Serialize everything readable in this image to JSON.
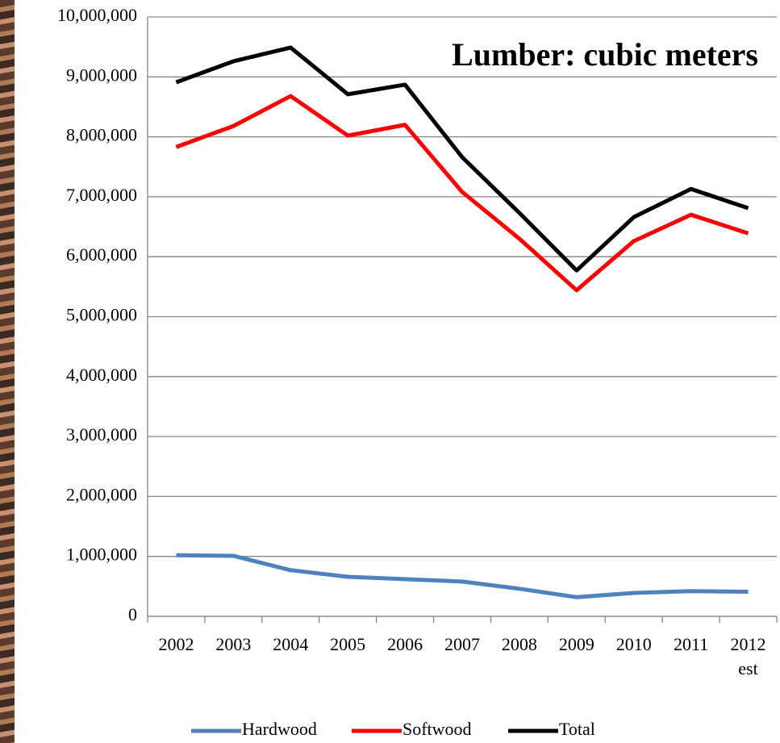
{
  "chart_data": {
    "type": "line",
    "title": "Lumber: cubic meters",
    "categories": [
      "2002",
      "2003",
      "2004",
      "2005",
      "2006",
      "2007",
      "2008",
      "2009",
      "2010",
      "2011",
      "2012 est"
    ],
    "series": [
      {
        "name": "Hardwood",
        "color": "#4f81bd",
        "values": [
          1020000,
          1010000,
          770000,
          660000,
          620000,
          580000,
          460000,
          320000,
          390000,
          420000,
          410000
        ]
      },
      {
        "name": "Softwood",
        "color": "#ff0000",
        "values": [
          7830000,
          8180000,
          8680000,
          8020000,
          8200000,
          7080000,
          6300000,
          5440000,
          6260000,
          6700000,
          6390000
        ]
      },
      {
        "name": "Total",
        "color": "#000000",
        "values": [
          8910000,
          9260000,
          9490000,
          8710000,
          8870000,
          7660000,
          6730000,
          5770000,
          6660000,
          7130000,
          6810000
        ]
      }
    ],
    "ylim": [
      0,
      10000000
    ],
    "yticks": [
      0,
      {
        "value": 1000000,
        "label": "1,000,000"
      },
      {
        "value": 2000000,
        "label": "2,000,000"
      },
      {
        "value": 3000000,
        "label": "3,000,000"
      },
      {
        "value": 4000000,
        "label": "4,000,000"
      },
      {
        "value": 5000000,
        "label": "5,000,000"
      },
      {
        "value": 6000000,
        "label": "6,000,000"
      },
      {
        "value": 7000000,
        "label": "7,000,000"
      },
      {
        "value": 8000000,
        "label": "8,000,000"
      },
      {
        "value": 9000000,
        "label": "9,000,000"
      },
      {
        "value": 10000000,
        "label": "10,000,000"
      }
    ],
    "grid": true
  }
}
